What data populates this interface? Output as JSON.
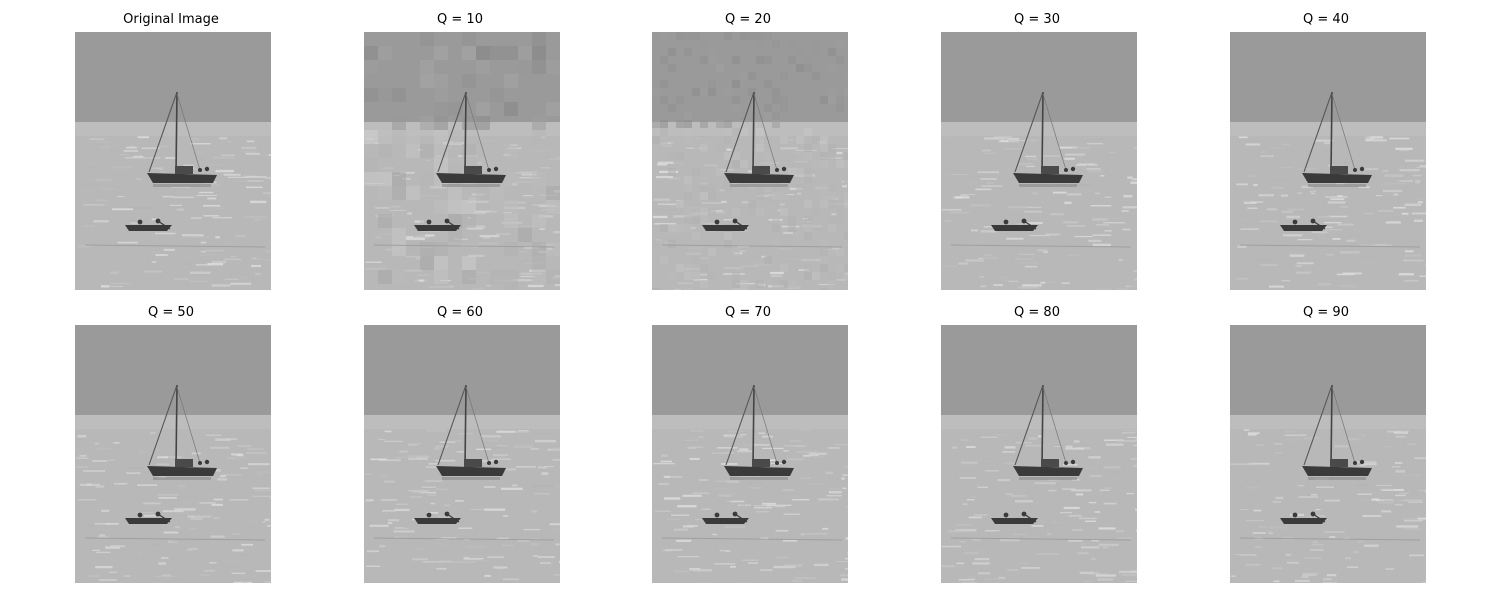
{
  "panels": [
    {
      "title": "Original Image",
      "quality": null
    },
    {
      "title": "Q = 10",
      "quality": 10
    },
    {
      "title": "Q = 20",
      "quality": 20
    },
    {
      "title": "Q = 30",
      "quality": 30
    },
    {
      "title": "Q = 40",
      "quality": 40
    },
    {
      "title": "Q = 50",
      "quality": 50
    },
    {
      "title": "Q = 60",
      "quality": 60
    },
    {
      "title": "Q = 70",
      "quality": 70
    },
    {
      "title": "Q = 80",
      "quality": 80
    },
    {
      "title": "Q = 90",
      "quality": 90
    }
  ],
  "colors": {
    "sky": "#9a9a9a",
    "horizon_band": "#bdbdbd",
    "water": "#b8b8b8",
    "water_bright": "#d6d6d6",
    "boat": "#3a3a3a"
  }
}
